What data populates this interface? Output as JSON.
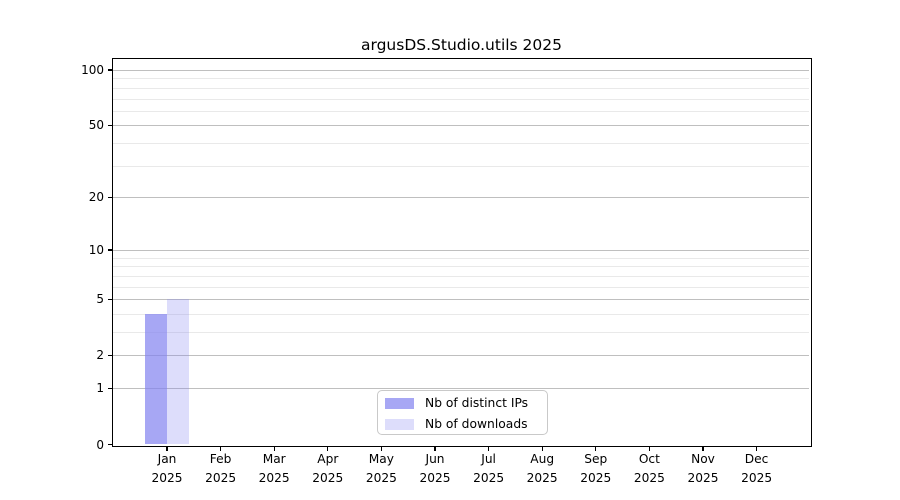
{
  "chart_data": {
    "type": "bar",
    "title": "argusDS.Studio.utils 2025",
    "x_categories": [
      "Jan",
      "Feb",
      "Mar",
      "Apr",
      "May",
      "Jun",
      "Jul",
      "Aug",
      "Sep",
      "Oct",
      "Nov",
      "Dec"
    ],
    "x_category_year": "2025",
    "series": [
      {
        "name": "Nb of distinct IPs",
        "color": "#8282f0b3",
        "values": [
          4,
          0,
          0,
          0,
          0,
          0,
          0,
          0,
          0,
          0,
          0,
          0
        ]
      },
      {
        "name": "Nb of downloads",
        "color": "#8282f045",
        "values": [
          5,
          0,
          0,
          0,
          0,
          0,
          0,
          0,
          0,
          0,
          0,
          0
        ]
      }
    ],
    "yscale": "log(value+1)",
    "ylim": [
      0,
      114
    ],
    "y_major_ticks": [
      0,
      1,
      2,
      5,
      10,
      20,
      50,
      100
    ],
    "y_minor_ticks": [
      3,
      4,
      6,
      7,
      8,
      9,
      30,
      40,
      60,
      70,
      80,
      90
    ],
    "grid": "both",
    "legend_position": "lower center",
    "colors": {
      "spine": "#000000",
      "grid_major": "#bfbfbf",
      "grid_minor": "#e9e9e9",
      "legend_border": "#c9c9c9",
      "text": "#000000",
      "background": "#ffffff"
    }
  }
}
